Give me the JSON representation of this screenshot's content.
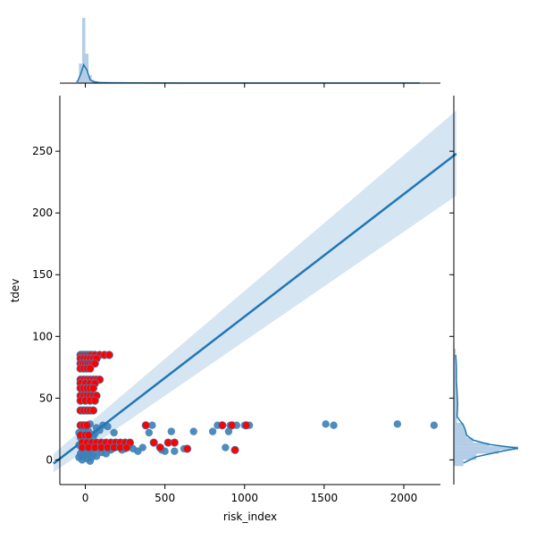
{
  "chart_data": {
    "type": "scatter",
    "subtype": "jointplot-regression",
    "xlabel": "risk_index",
    "ylabel": "tdev",
    "xlim": [
      -160,
      2230
    ],
    "ylim": [
      -20,
      295
    ],
    "x_ticks": [
      0,
      500,
      1000,
      1500,
      2000
    ],
    "y_ticks": [
      0,
      50,
      100,
      150,
      200,
      250
    ],
    "x_tick_labels": [
      "0",
      "500",
      "1000",
      "1500",
      "2000"
    ],
    "y_tick_labels": [
      "0",
      "50",
      "100",
      "150",
      "200",
      "250"
    ],
    "grid": false,
    "legend": "none",
    "colors": {
      "points": "#3b7fb6",
      "highlight": "#ff0000",
      "regression": "#1f77b4",
      "ci_band": "#c8dcee",
      "hist": "#9fc1de"
    },
    "regression": {
      "x": [
        -200,
        2330
      ],
      "y": [
        -3,
        248
      ],
      "ci_upper": [
        5,
        283
      ],
      "ci_lower": [
        -10,
        214
      ]
    },
    "blue_points": [
      [
        -40,
        2
      ],
      [
        -30,
        5
      ],
      [
        -20,
        8
      ],
      [
        -10,
        3
      ],
      [
        0,
        6
      ],
      [
        10,
        1
      ],
      [
        20,
        4
      ],
      [
        30,
        7
      ],
      [
        40,
        2
      ],
      [
        50,
        5
      ],
      [
        -40,
        12
      ],
      [
        -20,
        15
      ],
      [
        0,
        11
      ],
      [
        20,
        14
      ],
      [
        40,
        10
      ],
      [
        60,
        13
      ],
      [
        80,
        9
      ],
      [
        -30,
        18
      ],
      [
        10,
        20
      ],
      [
        50,
        19
      ],
      [
        -40,
        22
      ],
      [
        -10,
        25
      ],
      [
        20,
        23
      ],
      [
        60,
        21
      ],
      [
        90,
        24
      ],
      [
        -30,
        28
      ],
      [
        0,
        27
      ],
      [
        30,
        29
      ],
      [
        70,
        26
      ],
      [
        110,
        28
      ],
      [
        140,
        27
      ],
      [
        180,
        22
      ],
      [
        120,
        12
      ],
      [
        150,
        9
      ],
      [
        200,
        14
      ],
      [
        230,
        8
      ],
      [
        260,
        11
      ],
      [
        300,
        9
      ],
      [
        330,
        7
      ],
      [
        360,
        10
      ],
      [
        400,
        22
      ],
      [
        420,
        28
      ],
      [
        480,
        8
      ],
      [
        500,
        7
      ],
      [
        540,
        23
      ],
      [
        560,
        7
      ],
      [
        620,
        9
      ],
      [
        680,
        23
      ],
      [
        800,
        23
      ],
      [
        830,
        28
      ],
      [
        880,
        10
      ],
      [
        900,
        23
      ],
      [
        910,
        28
      ],
      [
        950,
        28
      ],
      [
        1000,
        28
      ],
      [
        1030,
        28
      ],
      [
        1510,
        29
      ],
      [
        1560,
        28
      ],
      [
        1960,
        29
      ],
      [
        2190,
        28
      ],
      [
        -20,
        0
      ],
      [
        30,
        -1
      ],
      [
        70,
        3
      ],
      [
        100,
        6
      ],
      [
        130,
        5
      ],
      [
        160,
        8
      ],
      [
        190,
        10
      ],
      [
        220,
        11
      ],
      [
        250,
        9
      ],
      [
        280,
        12
      ]
    ],
    "red_points": [
      [
        -30,
        85
      ],
      [
        -20,
        85
      ],
      [
        -10,
        85
      ],
      [
        0,
        85
      ],
      [
        10,
        85
      ],
      [
        20,
        85
      ],
      [
        30,
        85
      ],
      [
        40,
        85
      ],
      [
        60,
        85
      ],
      [
        90,
        85
      ],
      [
        120,
        85
      ],
      [
        150,
        85
      ],
      [
        -30,
        82
      ],
      [
        -10,
        82
      ],
      [
        10,
        82
      ],
      [
        30,
        82
      ],
      [
        50,
        82
      ],
      [
        70,
        82
      ],
      [
        -30,
        78
      ],
      [
        -15,
        78
      ],
      [
        0,
        78
      ],
      [
        15,
        78
      ],
      [
        30,
        78
      ],
      [
        45,
        78
      ],
      [
        60,
        78
      ],
      [
        -30,
        74
      ],
      [
        -10,
        74
      ],
      [
        10,
        74
      ],
      [
        30,
        74
      ],
      [
        -30,
        65
      ],
      [
        -10,
        65
      ],
      [
        10,
        65
      ],
      [
        30,
        65
      ],
      [
        50,
        65
      ],
      [
        70,
        65
      ],
      [
        90,
        65
      ],
      [
        -30,
        62
      ],
      [
        0,
        62
      ],
      [
        30,
        62
      ],
      [
        60,
        62
      ],
      [
        -30,
        58
      ],
      [
        -10,
        58
      ],
      [
        10,
        58
      ],
      [
        30,
        58
      ],
      [
        50,
        58
      ],
      [
        -30,
        52
      ],
      [
        -10,
        52
      ],
      [
        10,
        52
      ],
      [
        30,
        52
      ],
      [
        50,
        52
      ],
      [
        70,
        52
      ],
      [
        -30,
        48
      ],
      [
        0,
        48
      ],
      [
        30,
        48
      ],
      [
        60,
        48
      ],
      [
        -30,
        40
      ],
      [
        -10,
        40
      ],
      [
        10,
        40
      ],
      [
        30,
        40
      ],
      [
        50,
        40
      ],
      [
        -30,
        28
      ],
      [
        -10,
        28
      ],
      [
        10,
        28
      ],
      [
        -30,
        20
      ],
      [
        0,
        20
      ],
      [
        20,
        20
      ],
      [
        -20,
        14
      ],
      [
        10,
        14
      ],
      [
        40,
        14
      ],
      [
        70,
        14
      ],
      [
        100,
        14
      ],
      [
        130,
        14
      ],
      [
        160,
        14
      ],
      [
        190,
        14
      ],
      [
        220,
        14
      ],
      [
        250,
        14
      ],
      [
        280,
        14
      ],
      [
        -20,
        10
      ],
      [
        20,
        10
      ],
      [
        60,
        10
      ],
      [
        100,
        10
      ],
      [
        140,
        10
      ],
      [
        180,
        10
      ],
      [
        220,
        10
      ],
      [
        260,
        10
      ],
      [
        380,
        28
      ],
      [
        430,
        14
      ],
      [
        470,
        10
      ],
      [
        520,
        14
      ],
      [
        560,
        14
      ],
      [
        640,
        9
      ],
      [
        860,
        28
      ],
      [
        920,
        28
      ],
      [
        940,
        8
      ],
      [
        1010,
        28
      ]
    ],
    "marginal_x": {
      "bins": [
        -60,
        -40,
        -20,
        0,
        20,
        40,
        60,
        80,
        100,
        140,
        200,
        400,
        800,
        1200,
        1600,
        2000,
        2200
      ],
      "density": [
        0.04,
        0.3,
        1.0,
        0.45,
        0.12,
        0.05,
        0.03,
        0.02,
        0.015,
        0.01,
        0.008,
        0.005,
        0.004,
        0.003,
        0.003,
        0.002
      ]
    },
    "marginal_y": {
      "bins": [
        -5,
        0,
        5,
        8,
        11,
        14,
        18,
        22,
        26,
        30,
        40,
        50,
        60,
        70,
        80,
        90
      ],
      "density": [
        0.15,
        0.35,
        0.7,
        1.0,
        0.55,
        0.3,
        0.2,
        0.18,
        0.15,
        0.05,
        0.06,
        0.05,
        0.04,
        0.04,
        0.03
      ]
    }
  }
}
